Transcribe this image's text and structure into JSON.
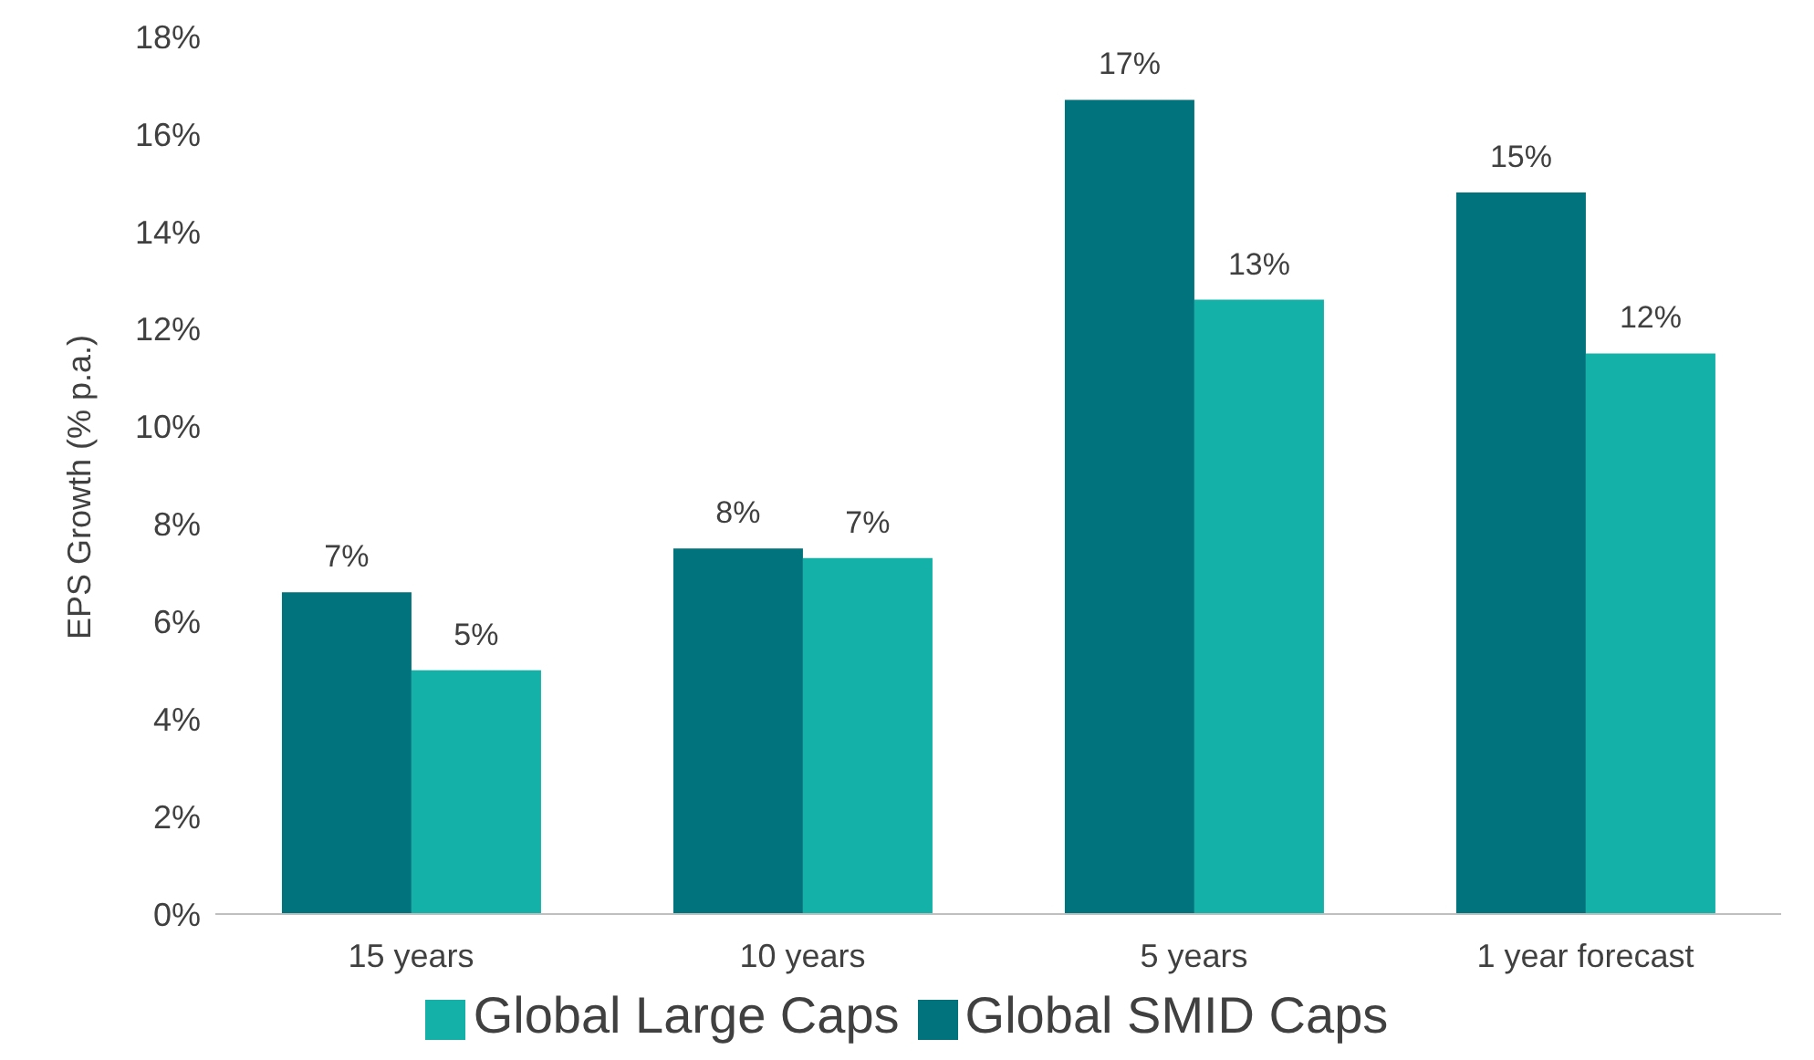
{
  "chart_data": {
    "type": "bar",
    "ylabel": "EPS Growth (% p.a.)",
    "categories": [
      "15 years",
      "10 years",
      "5 years",
      "1 year forecast"
    ],
    "series": [
      {
        "name": "Global SMID Caps",
        "color": "#00737c",
        "values": [
          6.6,
          7.5,
          16.7,
          14.8
        ],
        "value_labels": [
          "7%",
          "8%",
          "17%",
          "15%"
        ]
      },
      {
        "name": "Global Large Caps",
        "color": "#14b1a8",
        "values": [
          5.0,
          7.3,
          12.6,
          11.5
        ],
        "value_labels": [
          "5%",
          "7%",
          "13%",
          "12%"
        ]
      }
    ],
    "ylim": [
      0,
      18
    ],
    "yticks": [
      {
        "value": 0,
        "label": "0%"
      },
      {
        "value": 2,
        "label": "2%"
      },
      {
        "value": 4,
        "label": "4%"
      },
      {
        "value": 6,
        "label": "6%"
      },
      {
        "value": 8,
        "label": "8%"
      },
      {
        "value": 10,
        "label": "10%"
      },
      {
        "value": 12,
        "label": "12%"
      },
      {
        "value": 14,
        "label": "14%"
      },
      {
        "value": 16,
        "label": "16%"
      },
      {
        "value": 18,
        "label": "18%"
      }
    ],
    "grid": false,
    "legend": "bottom"
  }
}
